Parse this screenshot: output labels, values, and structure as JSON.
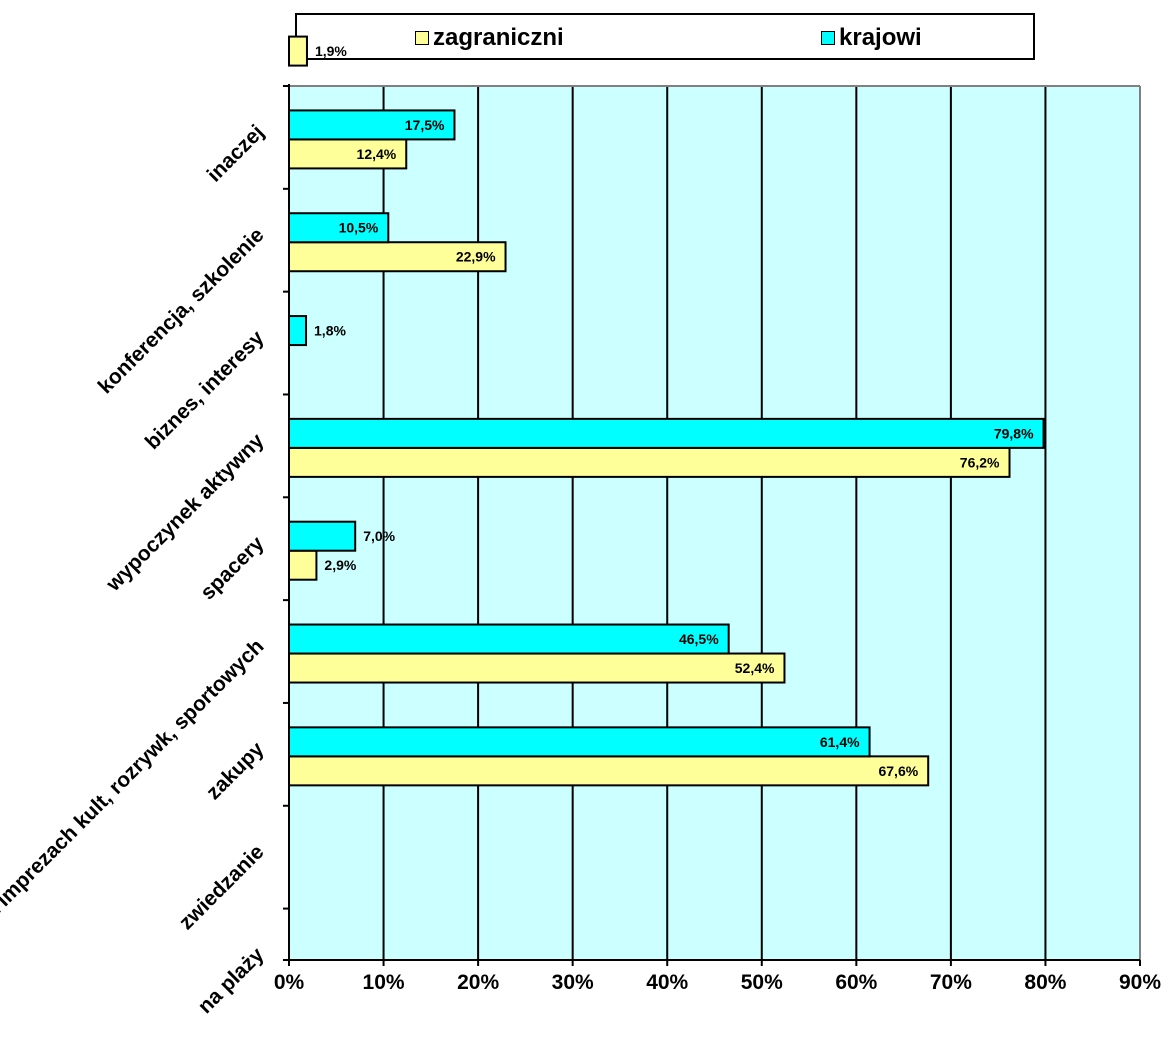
{
  "chart_data": {
    "type": "bar",
    "orientation": "horizontal",
    "categories": [
      "na plaży",
      "zwiedzanie",
      "zakupy",
      "na imprezach kult, rozrywk, sportowych",
      "spacery",
      "wypoczynek aktywny",
      "biznes, interesy",
      "konferencja, szkolenie",
      "inaczej"
    ],
    "series": [
      {
        "name": "zagraniczni",
        "color": "#ffff99",
        "values": [
          null,
          67.6,
          52.4,
          2.9,
          76.2,
          null,
          22.9,
          12.4,
          1.9
        ],
        "labels": [
          null,
          "67,6%",
          "52,4%",
          "2,9%",
          "76,2%",
          null,
          "22,9%",
          "12,4%",
          "1,9%"
        ]
      },
      {
        "name": "krajowi",
        "color": "#00ffff",
        "values": [
          null,
          61.4,
          46.5,
          7.0,
          79.8,
          1.8,
          10.5,
          17.5,
          null
        ],
        "labels": [
          null,
          "61,4%",
          "46,5%",
          "7,0%",
          "79,8%",
          "1,8%",
          "10,5%",
          "17,5%",
          null
        ]
      }
    ],
    "xlim": [
      0,
      90
    ],
    "xticks": [
      "0%",
      "10%",
      "20%",
      "30%",
      "40%",
      "50%",
      "60%",
      "70%",
      "80%",
      "90%"
    ],
    "grid": true,
    "legend_position": "top",
    "plot_background": "#ccffff"
  }
}
